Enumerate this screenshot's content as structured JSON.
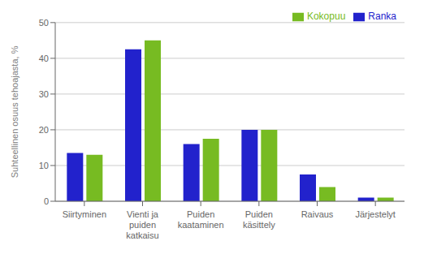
{
  "chart_data": {
    "type": "bar",
    "categories": [
      "Siirtyminen",
      "Vienti ja\npuiden\nkatkaisu",
      "Puiden\nkaataminen",
      "Puiden\nkäsittely",
      "Raivaus",
      "Järjestelyt"
    ],
    "series": [
      {
        "name": "Ranka",
        "color": "#2222CC",
        "values": [
          13.5,
          42.5,
          16,
          20,
          7.5,
          1
        ]
      },
      {
        "name": "Kokopuu",
        "color": "#77BB22",
        "values": [
          13,
          45,
          17.5,
          20,
          4,
          1
        ]
      }
    ],
    "ylabel": "Suhteellinen osuus tehoajasta, %",
    "ylim": [
      0,
      50
    ],
    "yticks": [
      0,
      10,
      20,
      30,
      40,
      50
    ],
    "grid": true,
    "legend": "upper right"
  }
}
